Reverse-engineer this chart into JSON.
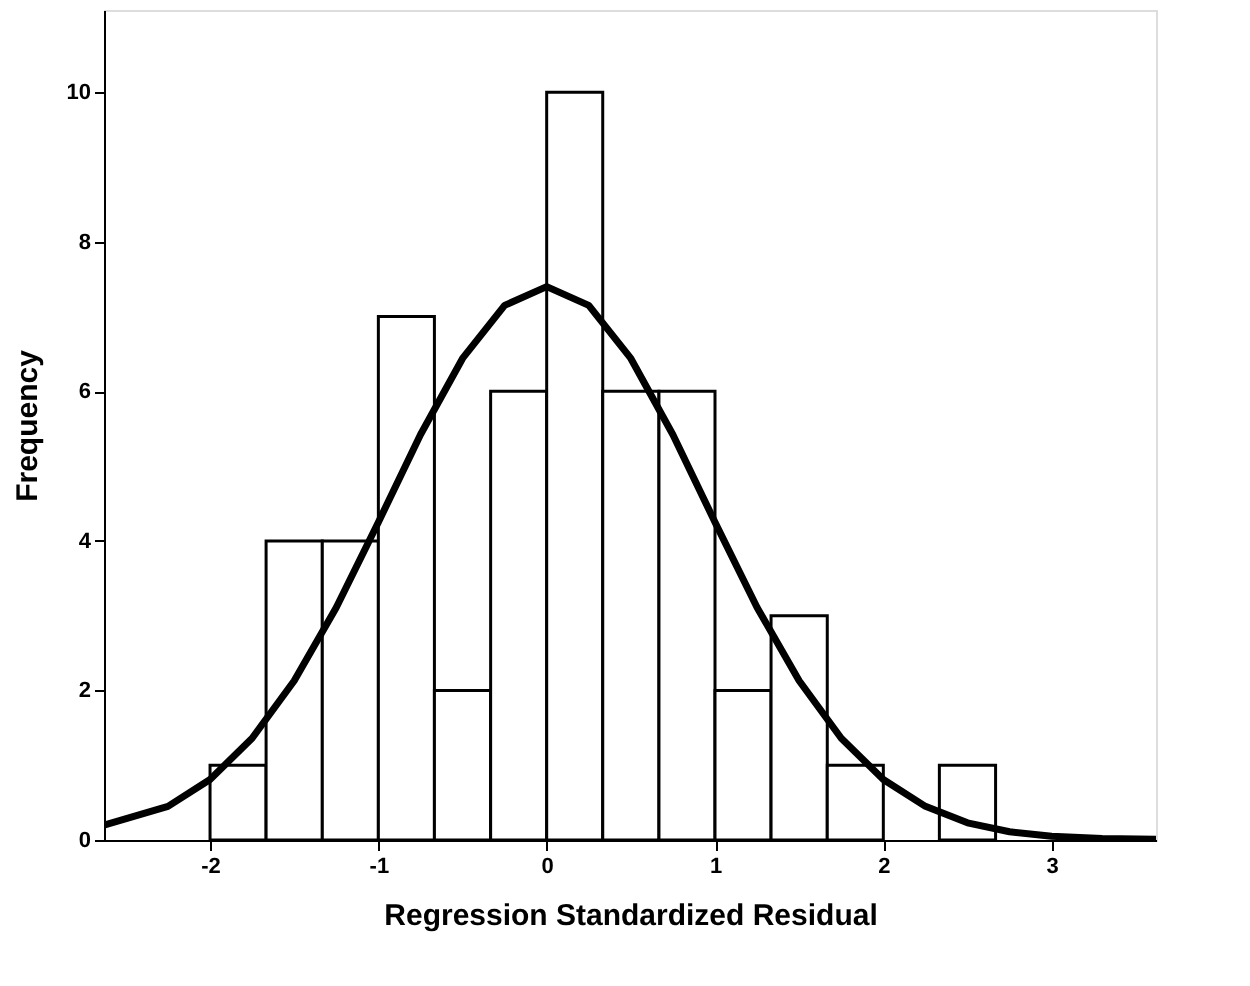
{
  "chart_data": {
    "type": "histogram",
    "xlabel": "Regression Standardized Residual",
    "ylabel": "Frequency",
    "bins": [
      -2,
      -1.667,
      -1.333,
      -1,
      -0.667,
      -0.333,
      0,
      0.333,
      0.667,
      1,
      1.333,
      1.667,
      2,
      2.333,
      2.667
    ],
    "values": [
      1,
      4,
      4,
      7,
      2,
      6,
      10,
      6,
      6,
      2,
      3,
      1,
      0,
      1
    ],
    "color": "#ffffff",
    "series": [
      {
        "type": "line",
        "color": "#000000",
        "x": [
          -2.63,
          -2.25,
          -2,
          -1.75,
          -1.5,
          -1.25,
          -1,
          -0.75,
          -0.5,
          -0.25,
          0,
          0.25,
          0.5,
          0.75,
          1,
          1.25,
          1.5,
          1.75,
          2,
          2.25,
          2.5,
          2.75,
          3,
          3.3,
          3.62
        ],
        "values": [
          0.2,
          0.45,
          0.81,
          1.36,
          2.13,
          3.11,
          4.25,
          5.42,
          6.44,
          7.15,
          7.4,
          7.15,
          6.44,
          5.42,
          4.25,
          3.11,
          2.13,
          1.36,
          0.81,
          0.45,
          0.23,
          0.11,
          0.05,
          0.02,
          0.01
        ]
      }
    ],
    "xlim": [
      -2.63,
      3.62
    ],
    "xticks": [
      -2,
      -1,
      0,
      1,
      2,
      3
    ],
    "ylim": [
      0,
      11.1
    ],
    "yticks": [
      0,
      2,
      4,
      6,
      8,
      10
    ],
    "grid": false
  }
}
